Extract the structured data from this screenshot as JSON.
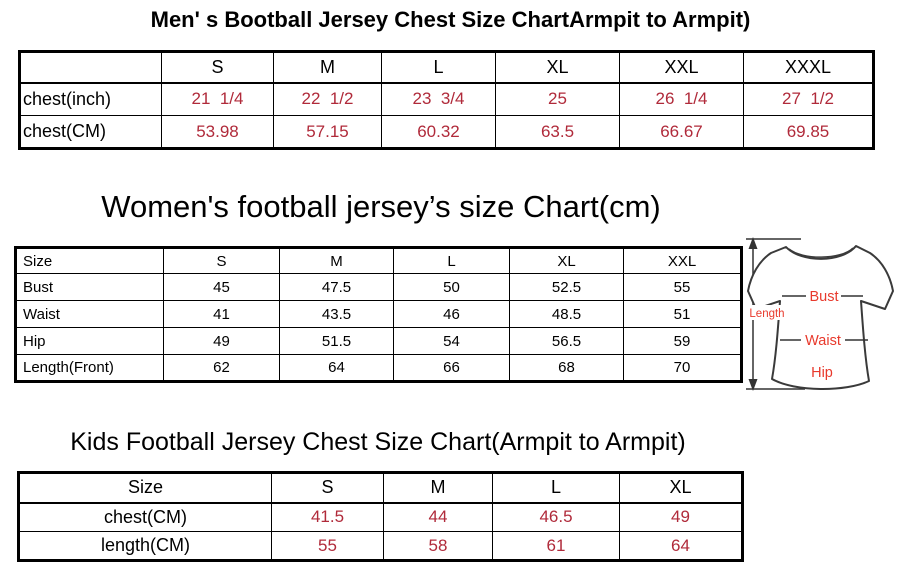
{
  "colors": {
    "value_red": "#B02A3A",
    "diagram_label_red": "#E8392C",
    "text_black": "#000000",
    "shirt_outline": "#3a3a3a"
  },
  "men_chart": {
    "title": "Men' s Bootball Jersey Chest Size ChartArmpit to Armpit)",
    "header": [
      "",
      "S",
      "M",
      "L",
      "XL",
      "XXL",
      "XXXL"
    ],
    "rows": [
      {
        "label": "chest(inch)",
        "values": [
          "21  1/4",
          "22  1/2",
          "23  3/4",
          "25",
          "26  1/4",
          "27  1/2"
        ]
      },
      {
        "label": "chest(CM)",
        "values": [
          "53.98",
          "57.15",
          "60.32",
          "63.5",
          "66.67",
          "69.85"
        ]
      }
    ]
  },
  "women_chart": {
    "title": "Women's football jersey’s size Chart(cm)",
    "header": [
      "Size",
      "S",
      "M",
      "L",
      "XL",
      "XXL"
    ],
    "rows": [
      {
        "label": "Bust",
        "values": [
          "45",
          "47.5",
          "50",
          "52.5",
          "55"
        ]
      },
      {
        "label": "Waist",
        "values": [
          "41",
          "43.5",
          "46",
          "48.5",
          "51"
        ]
      },
      {
        "label": "Hip",
        "values": [
          "49",
          "51.5",
          "54",
          "56.5",
          "59"
        ]
      },
      {
        "label": "Length(Front)",
        "values": [
          "62",
          "64",
          "66",
          "68",
          "70"
        ]
      }
    ]
  },
  "kids_chart": {
    "title": "Kids Football Jersey Chest Size Chart(Armpit to Armpit)",
    "header": [
      "Size",
      "S",
      "M",
      "L",
      "XL"
    ],
    "rows": [
      {
        "label": "chest(CM)",
        "values": [
          "41.5",
          "44",
          "46.5",
          "49"
        ]
      },
      {
        "label": "length(CM)",
        "values": [
          "55",
          "58",
          "61",
          "64"
        ]
      }
    ]
  },
  "diagram": {
    "length_label": "Length",
    "bust_label": "Bust",
    "waist_label": "Waist",
    "hip_label": "Hip"
  },
  "chart_data": [
    {
      "type": "table",
      "title": "Men' s Bootball Jersey Chest Size ChartArmpit to Armpit)",
      "columns": [
        "",
        "S",
        "M",
        "L",
        "XL",
        "XXL",
        "XXXL"
      ],
      "rows": [
        [
          "chest(inch)",
          "21 1/4",
          "22 1/2",
          "23 3/4",
          "25",
          "26 1/4",
          "27 1/2"
        ],
        [
          "chest(CM)",
          53.98,
          57.15,
          60.32,
          63.5,
          66.67,
          69.85
        ]
      ]
    },
    {
      "type": "table",
      "title": "Women's football jersey’s size Chart(cm)",
      "columns": [
        "Size",
        "S",
        "M",
        "L",
        "XL",
        "XXL"
      ],
      "rows": [
        [
          "Bust",
          45,
          47.5,
          50,
          52.5,
          55
        ],
        [
          "Waist",
          41,
          43.5,
          46,
          48.5,
          51
        ],
        [
          "Hip",
          49,
          51.5,
          54,
          56.5,
          59
        ],
        [
          "Length(Front)",
          62,
          64,
          66,
          68,
          70
        ]
      ]
    },
    {
      "type": "table",
      "title": "Kids Football Jersey Chest Size Chart(Armpit to Armpit)",
      "columns": [
        "Size",
        "S",
        "M",
        "L",
        "XL"
      ],
      "rows": [
        [
          "chest(CM)",
          41.5,
          44,
          46.5,
          49
        ],
        [
          "length(CM)",
          55,
          58,
          61,
          64
        ]
      ]
    }
  ]
}
